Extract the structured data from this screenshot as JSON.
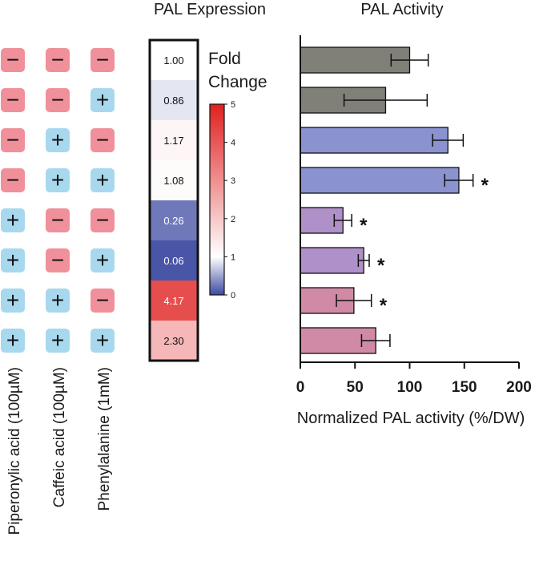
{
  "chart_data": [
    {
      "type": "table",
      "title": "",
      "columns": [
        "Piperonylic acid (100µM)",
        "Caffeic acid (100µM)",
        "Phenylalanine (1mM)"
      ],
      "rows": [
        [
          "−",
          "−",
          "−"
        ],
        [
          "−",
          "−",
          "+"
        ],
        [
          "−",
          "+",
          "−"
        ],
        [
          "−",
          "+",
          "+"
        ],
        [
          "+",
          "−",
          "−"
        ],
        [
          "+",
          "−",
          "+"
        ],
        [
          "+",
          "+",
          "−"
        ],
        [
          "+",
          "+",
          "+"
        ]
      ],
      "colors": {
        "minus": "#f0909a",
        "plus": "#a8d8ee"
      }
    },
    {
      "type": "heatmap",
      "title": "PAL Expression",
      "values": [
        1.0,
        0.86,
        1.17,
        1.08,
        0.26,
        0.06,
        4.17,
        2.3
      ],
      "labels": [
        "1.00",
        "0.86",
        "1.17",
        "1.08",
        "0.26",
        "0.06",
        "4.17",
        "2.30"
      ],
      "colorbar": {
        "title_line1": "Fold",
        "title_line2": "Change",
        "range": [
          0,
          5
        ],
        "ticks": [
          "0",
          "1",
          "2",
          "3",
          "4",
          "5"
        ],
        "low_color": "#3d4aa0",
        "mid_color": "#ffffff",
        "high_color": "#e02020"
      }
    },
    {
      "type": "bar",
      "orientation": "horizontal",
      "title": "PAL Activity",
      "xlabel": "Normalized PAL activity (%/DW)",
      "ylabel": "",
      "xlim": [
        0,
        200
      ],
      "xticks": [
        "0",
        "50",
        "100",
        "150",
        "200"
      ],
      "values": [
        100,
        78,
        135,
        145,
        39,
        58,
        49,
        69
      ],
      "errors": [
        17,
        38,
        14,
        13,
        8,
        5,
        16,
        13
      ],
      "significance": [
        "",
        "",
        "",
        "*",
        "*",
        "*",
        "*",
        ""
      ],
      "bar_colors": [
        "#808078",
        "#808078",
        "#8a92d0",
        "#8a92d0",
        "#b090c8",
        "#b090c8",
        "#d08aa6",
        "#d08aa6"
      ]
    }
  ]
}
